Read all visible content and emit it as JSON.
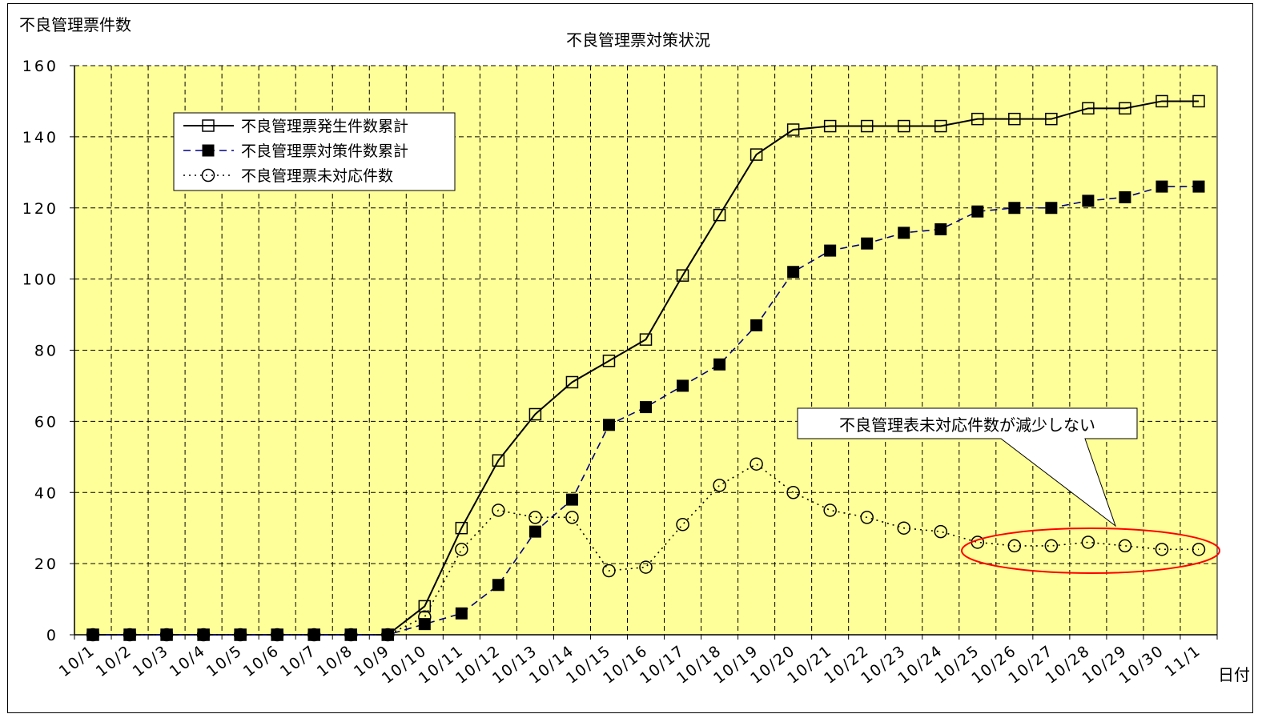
{
  "chart_data": {
    "type": "line",
    "title": "不良管理票対策状況",
    "ylabel": "不良管理票件数",
    "xlabel": "日付",
    "ylim": [
      0,
      160
    ],
    "yticks": [
      0,
      20,
      40,
      60,
      80,
      100,
      120,
      140,
      160
    ],
    "grid": true,
    "legend_position": "top-left",
    "plot_background": "#FFFF99",
    "categories": [
      "10/1",
      "10/2",
      "10/3",
      "10/4",
      "10/5",
      "10/6",
      "10/7",
      "10/8",
      "10/9",
      "10/10",
      "10/11",
      "10/12",
      "10/13",
      "10/14",
      "10/15",
      "10/16",
      "10/17",
      "10/18",
      "10/19",
      "10/20",
      "10/21",
      "10/22",
      "10/23",
      "10/24",
      "10/25",
      "10/26",
      "10/27",
      "10/28",
      "10/29",
      "10/30",
      "11/1"
    ],
    "series": [
      {
        "name": "不良管理票発生件数累計",
        "line": "solid",
        "marker": "open-square",
        "color": "#000000",
        "values": [
          0,
          0,
          0,
          0,
          0,
          0,
          0,
          0,
          0,
          8,
          30,
          49,
          62,
          71,
          77,
          83,
          101,
          118,
          135,
          142,
          143,
          143,
          143,
          143,
          145,
          145,
          145,
          148,
          148,
          150,
          150
        ]
      },
      {
        "name": "不良管理票対策件数累計",
        "line": "dashed",
        "marker": "filled-square",
        "color": "#000080",
        "values": [
          0,
          0,
          0,
          0,
          0,
          0,
          0,
          0,
          0,
          3,
          6,
          14,
          29,
          38,
          59,
          64,
          70,
          76,
          87,
          102,
          108,
          110,
          113,
          114,
          119,
          120,
          120,
          122,
          123,
          126,
          126
        ]
      },
      {
        "name": "不良管理票未対応件数",
        "line": "dotted",
        "marker": "open-circle",
        "color": "#000000",
        "values": [
          0,
          0,
          0,
          0,
          0,
          0,
          0,
          0,
          0,
          5,
          24,
          35,
          33,
          33,
          18,
          19,
          31,
          42,
          48,
          40,
          35,
          33,
          30,
          29,
          26,
          25,
          25,
          26,
          25,
          24,
          24
        ]
      }
    ],
    "annotations": [
      {
        "text": "不良管理表未対応件数が減少しない",
        "type": "callout",
        "highlight_color": "#FF0000"
      }
    ]
  }
}
